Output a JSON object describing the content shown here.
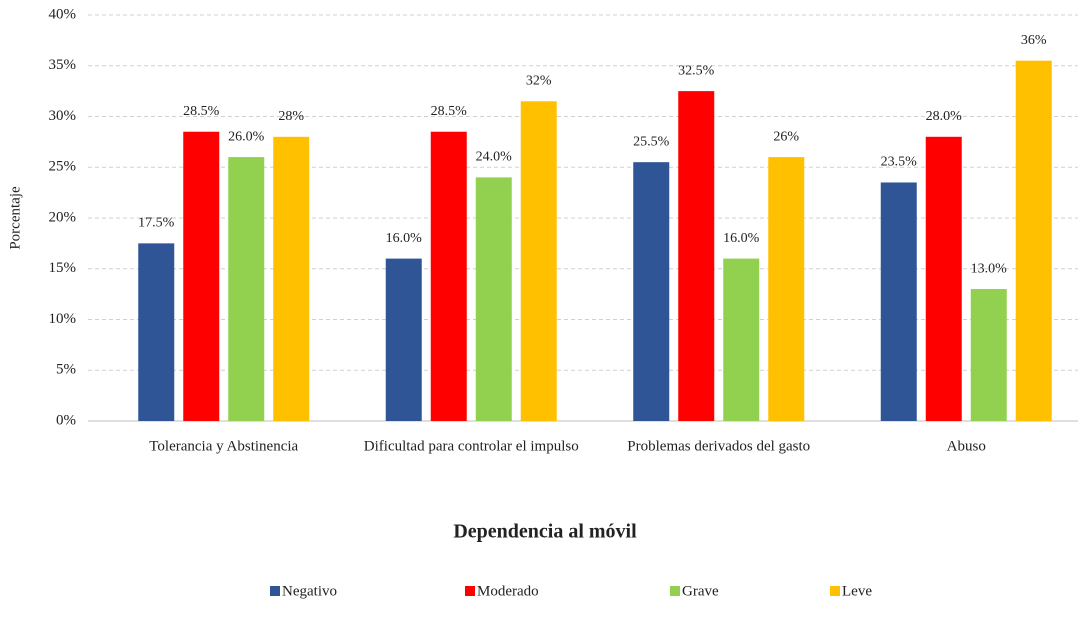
{
  "chart_data": {
    "type": "bar",
    "categories": [
      "Tolerancia y Abstinencia",
      "Dificultad para controlar el impulso",
      "Problemas derivados del gasto",
      "Abuso"
    ],
    "series": [
      {
        "name": "Negativo",
        "color": "#2f5597",
        "values": [
          17.5,
          16.0,
          25.5,
          23.5
        ],
        "value_labels": [
          "17.5%",
          "16.0%",
          "25.5%",
          "23.5%"
        ]
      },
      {
        "name": "Moderado",
        "color": "#ff0000",
        "values": [
          28.5,
          28.5,
          32.5,
          28.0
        ],
        "value_labels": [
          "28.5%",
          "28.5%",
          "32.5%",
          "28.0%"
        ]
      },
      {
        "name": "Grave",
        "color": "#92d050",
        "values": [
          26.0,
          24.0,
          16.0,
          13.0
        ],
        "value_labels": [
          "26.0%",
          "24.0%",
          "16.0%",
          "13.0%"
        ]
      },
      {
        "name": "Leve",
        "color": "#ffc000",
        "values": [
          28,
          31.5,
          26,
          35.5
        ],
        "value_labels": [
          "28%",
          "32%",
          "26%",
          "36%"
        ]
      }
    ],
    "ylim": [
      0,
      40
    ],
    "yticks": [
      {
        "value": 0,
        "label": "0%"
      },
      {
        "value": 5,
        "label": "5%"
      },
      {
        "value": 10,
        "label": "10%"
      },
      {
        "value": 15,
        "label": "15%"
      },
      {
        "value": 20,
        "label": "20%"
      },
      {
        "value": 25,
        "label": "25%"
      },
      {
        "value": 30,
        "label": "30%"
      },
      {
        "value": 35,
        "label": "35%"
      },
      {
        "value": 40,
        "label": "40%"
      }
    ],
    "ylabel": "Porcentaje",
    "xlabel": "Dependencia al móvil",
    "grid": true,
    "legend": "bottom"
  }
}
